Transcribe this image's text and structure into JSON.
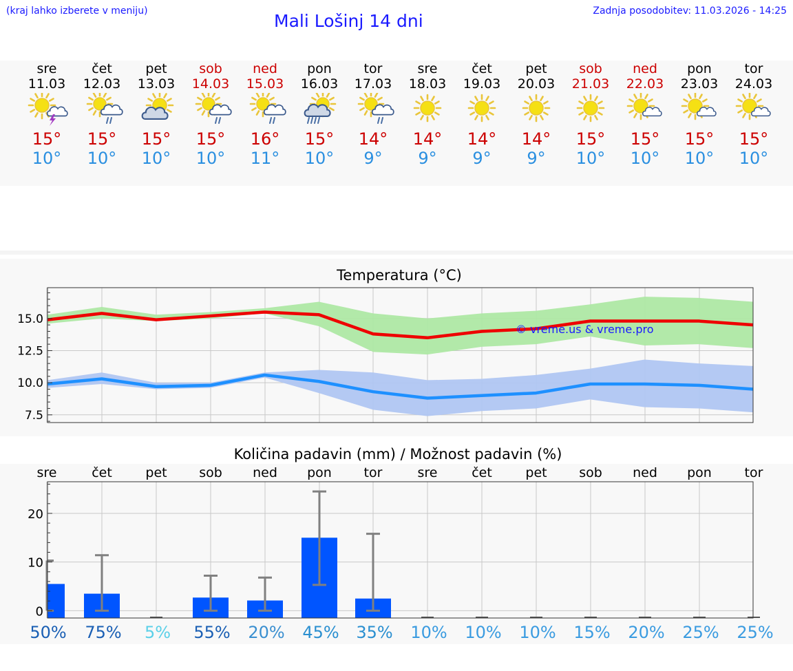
{
  "header": {
    "note": "(kraj lahko izberete v meniju)",
    "title": "Mali Lošinj 14 dni",
    "updated": "Zadnja posodobitev: 11.03.2026 - 14:25"
  },
  "forecast": {
    "days": [
      {
        "day": "sre",
        "date": "11.03",
        "weekend": false,
        "icon": "sun-cloud-thunder-icon",
        "tmax": "15°",
        "tmin": "10°"
      },
      {
        "day": "čet",
        "date": "12.03",
        "weekend": false,
        "icon": "sun-cloud-rain-icon",
        "tmax": "15°",
        "tmin": "10°"
      },
      {
        "day": "pet",
        "date": "13.03",
        "weekend": false,
        "icon": "sun-cloud-icon",
        "tmax": "15°",
        "tmin": "10°"
      },
      {
        "day": "sob",
        "date": "14.03",
        "weekend": true,
        "icon": "sun-cloud-rain-icon",
        "tmax": "15°",
        "tmin": "10°"
      },
      {
        "day": "ned",
        "date": "15.03",
        "weekend": true,
        "icon": "sun-cloud-rain-icon",
        "tmax": "16°",
        "tmin": "11°"
      },
      {
        "day": "pon",
        "date": "16.03",
        "weekend": false,
        "icon": "sun-cloud-heavy-rain-icon",
        "tmax": "15°",
        "tmin": "10°"
      },
      {
        "day": "tor",
        "date": "17.03",
        "weekend": false,
        "icon": "sun-cloud-rain-icon",
        "tmax": "14°",
        "tmin": "9°"
      },
      {
        "day": "sre",
        "date": "18.03",
        "weekend": false,
        "icon": "sun-icon",
        "tmax": "14°",
        "tmin": "9°"
      },
      {
        "day": "čet",
        "date": "19.03",
        "weekend": false,
        "icon": "sun-icon",
        "tmax": "14°",
        "tmin": "9°"
      },
      {
        "day": "pet",
        "date": "20.03",
        "weekend": false,
        "icon": "sun-icon",
        "tmax": "14°",
        "tmin": "9°"
      },
      {
        "day": "sob",
        "date": "21.03",
        "weekend": true,
        "icon": "sun-icon",
        "tmax": "15°",
        "tmin": "10°"
      },
      {
        "day": "ned",
        "date": "22.03",
        "weekend": true,
        "icon": "sun-small-cloud-icon",
        "tmax": "15°",
        "tmin": "10°"
      },
      {
        "day": "pon",
        "date": "23.03",
        "weekend": false,
        "icon": "sun-small-cloud-icon",
        "tmax": "15°",
        "tmin": "10°"
      },
      {
        "day": "tor",
        "date": "24.03",
        "weekend": false,
        "icon": "sun-small-cloud-icon",
        "tmax": "15°",
        "tmin": "10°"
      }
    ]
  },
  "colors": {
    "max_line": "#ee0000",
    "max_band": "#aee8a4",
    "min_line": "#1e90ff",
    "min_band": "#b0c6f2",
    "precip_bar": "#0055ff",
    "error_bar": "#808080",
    "weekend_text": "#cc0000"
  },
  "chart_data": [
    {
      "type": "line",
      "title": "Temperatura (°C)",
      "watermark": "© vreme.us & vreme.pro",
      "x": [
        0,
        1,
        2,
        3,
        4,
        5,
        6,
        7,
        8,
        9,
        10,
        11,
        12,
        13
      ],
      "ylim": [
        6.9,
        17.4
      ],
      "yticks": [
        7.5,
        10.0,
        12.5,
        15.0
      ],
      "ytick_labels": [
        "7.5",
        "10.0",
        "12.5",
        "15.0"
      ],
      "grid": true,
      "series": [
        {
          "name": "max",
          "values": [
            14.9,
            15.4,
            14.9,
            15.2,
            15.5,
            15.3,
            13.8,
            13.5,
            14.0,
            14.2,
            14.8,
            14.8,
            14.8,
            14.5
          ],
          "band_low": [
            14.6,
            15.0,
            14.8,
            15.0,
            15.4,
            14.4,
            12.4,
            12.2,
            12.8,
            13.0,
            13.6,
            12.9,
            13.0,
            12.7
          ],
          "band_high": [
            15.3,
            15.9,
            15.3,
            15.5,
            15.8,
            16.3,
            15.4,
            15.0,
            15.4,
            15.6,
            16.1,
            16.7,
            16.6,
            16.3
          ]
        },
        {
          "name": "min",
          "values": [
            9.9,
            10.3,
            9.7,
            9.8,
            10.6,
            10.1,
            9.3,
            8.8,
            9.0,
            9.2,
            9.9,
            9.9,
            9.8,
            9.5
          ],
          "band_low": [
            9.6,
            9.9,
            9.5,
            9.6,
            10.4,
            9.2,
            7.9,
            7.4,
            7.8,
            8.0,
            8.7,
            8.1,
            8.0,
            7.7
          ],
          "band_high": [
            10.2,
            10.8,
            10.0,
            10.0,
            10.8,
            11.0,
            10.8,
            10.2,
            10.3,
            10.6,
            11.1,
            11.8,
            11.5,
            11.3
          ]
        }
      ]
    },
    {
      "type": "bar",
      "title": "Količina padavin (mm) / Možnost padavin (%)",
      "categories": [
        "sre",
        "čet",
        "pet",
        "sob",
        "ned",
        "pon",
        "tor",
        "sre",
        "čet",
        "pet",
        "sob",
        "ned",
        "pon",
        "tor"
      ],
      "ylim": [
        -1.5,
        26.5
      ],
      "yticks": [
        0,
        10,
        20
      ],
      "ytick_labels": [
        "0",
        "10",
        "20"
      ],
      "grid": true,
      "values": [
        5.5,
        3.5,
        0,
        2.7,
        2.1,
        15.0,
        2.5,
        0,
        0,
        0,
        0,
        0,
        0,
        0
      ],
      "error_low": [
        0,
        0,
        0,
        0,
        0,
        5.3,
        0,
        0,
        0,
        0,
        0,
        0,
        0,
        0
      ],
      "error_high": [
        10.3,
        11.4,
        0,
        7.2,
        6.8,
        24.5,
        15.8,
        0,
        0,
        0,
        0,
        0,
        0,
        0
      ],
      "probability_labels": [
        "50%",
        "75%",
        "5%",
        "55%",
        "20%",
        "45%",
        "35%",
        "10%",
        "10%",
        "10%",
        "15%",
        "20%",
        "25%",
        "25%"
      ],
      "probability_colors": [
        "#1a5fb4",
        "#1a5fb4",
        "#5bd0e8",
        "#1a5fb4",
        "#3a8fd0",
        "#2a8fd0",
        "#2a8fd0",
        "#3a9be0",
        "#3a9be0",
        "#3a9be0",
        "#3a9be0",
        "#3a9be0",
        "#3a9be0",
        "#3a9be0"
      ]
    }
  ]
}
